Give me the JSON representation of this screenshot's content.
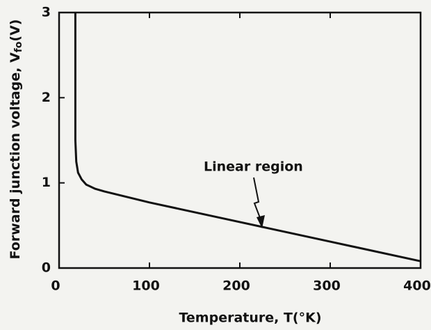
{
  "chart_data": {
    "type": "line",
    "xlabel": "Temperature, T(°K)",
    "ylabel": "Forward junction voltage, V",
    "ylabel_sub": "fo",
    "ylabel_unit": "(V)",
    "annotation": "Linear region",
    "x": [
      18,
      18,
      18,
      19,
      21,
      25,
      30,
      40,
      50,
      100,
      200,
      300,
      400
    ],
    "values": [
      3,
      2,
      1.5,
      1.25,
      1.12,
      1.04,
      0.98,
      0.93,
      0.9,
      0.77,
      0.54,
      0.31,
      0.08
    ],
    "color": "#111111",
    "xlim": [
      0,
      400
    ],
    "xticks": [
      0,
      100,
      200,
      300,
      400
    ],
    "ylim": [
      0,
      3
    ],
    "yticks": [
      0,
      1,
      2,
      3
    ],
    "grid": false
  }
}
